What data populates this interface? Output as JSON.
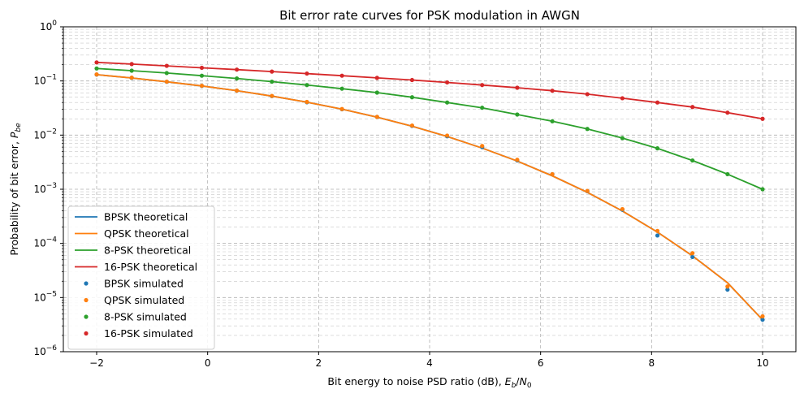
{
  "chart_data": {
    "type": "line",
    "title": "Bit error rate curves for PSK modulation in AWGN",
    "xlabel": {
      "main": "Bit energy to noise PSD ratio (dB), ",
      "var": "E",
      "sub": "b",
      "sep": "/",
      "var2": "N",
      "sub2": "0"
    },
    "ylabel": {
      "main": "Probability of bit error, ",
      "var": "P",
      "sub": "be"
    },
    "xlim": [
      -2.6,
      10.6
    ],
    "ylim": [
      1e-06,
      1
    ],
    "yscale": "log",
    "grid": true,
    "legend_position": "lower-left",
    "x_ticks": [
      -2,
      0,
      2,
      4,
      6,
      8,
      10
    ],
    "x_tick_labels": [
      "−2",
      "0",
      "2",
      "4",
      "6",
      "8",
      "10"
    ],
    "y_ticks": [
      {
        "exp": -6,
        "base": "10",
        "sup": "−6"
      },
      {
        "exp": -5,
        "base": "10",
        "sup": "−5"
      },
      {
        "exp": -4,
        "base": "10",
        "sup": "−4"
      },
      {
        "exp": -3,
        "base": "10",
        "sup": "−3"
      },
      {
        "exp": -2,
        "base": "10",
        "sup": "−2"
      },
      {
        "exp": -1,
        "base": "10",
        "sup": "−1"
      },
      {
        "exp": 0,
        "base": "10",
        "sup": "0"
      }
    ],
    "x": [
      -2.0,
      -1.368,
      -0.737,
      -0.105,
      0.526,
      1.158,
      1.789,
      2.421,
      3.053,
      3.684,
      4.316,
      4.947,
      5.579,
      6.211,
      6.842,
      7.474,
      8.105,
      8.737,
      9.368,
      10.0
    ],
    "series": [
      {
        "name": "BPSK theoretical",
        "kind": "line",
        "color": "#1f77b4",
        "values": [
          0.1306,
          0.1135,
          0.0966,
          0.0808,
          0.0662,
          0.0526,
          0.0405,
          0.0301,
          0.0215,
          0.0146,
          0.00944,
          0.00576,
          0.00331,
          0.00177,
          0.000876,
          0.000396,
          0.000162,
          5.89e-05,
          1.88e-05,
          3.87e-06
        ]
      },
      {
        "name": "QPSK theoretical",
        "kind": "line",
        "color": "#ff7f0e",
        "values": [
          0.1306,
          0.1135,
          0.0966,
          0.0808,
          0.0662,
          0.0526,
          0.0405,
          0.0301,
          0.0215,
          0.0146,
          0.00944,
          0.00576,
          0.00331,
          0.00177,
          0.000876,
          0.000396,
          0.000162,
          5.89e-05,
          1.88e-05,
          3.87e-06
        ]
      },
      {
        "name": "8-PSK theoretical",
        "kind": "line",
        "color": "#2ca02c",
        "values": [
          0.17,
          0.155,
          0.14,
          0.125,
          0.111,
          0.097,
          0.084,
          0.072,
          0.061,
          0.05,
          0.04,
          0.032,
          0.024,
          0.018,
          0.013,
          0.0088,
          0.0057,
          0.0034,
          0.0019,
          0.001
        ]
      },
      {
        "name": "16-PSK theoretical",
        "kind": "line",
        "color": "#d62728",
        "values": [
          0.22,
          0.205,
          0.19,
          0.175,
          0.162,
          0.149,
          0.137,
          0.125,
          0.114,
          0.104,
          0.094,
          0.084,
          0.075,
          0.066,
          0.057,
          0.048,
          0.04,
          0.033,
          0.026,
          0.02
        ]
      },
      {
        "name": "BPSK simulated",
        "kind": "scatter",
        "color": "#1f77b4",
        "values": [
          0.131,
          0.114,
          0.0965,
          0.081,
          0.0662,
          0.0525,
          0.0404,
          0.03,
          0.0216,
          0.0148,
          0.0095,
          0.006,
          0.0034,
          0.0019,
          0.00092,
          0.00042,
          0.00014,
          5.6e-05,
          1.4e-05,
          3.9e-06
        ]
      },
      {
        "name": "QPSK simulated",
        "kind": "scatter",
        "color": "#ff7f0e",
        "values": [
          0.132,
          0.115,
          0.097,
          0.0815,
          0.0665,
          0.053,
          0.041,
          0.0303,
          0.0217,
          0.015,
          0.0098,
          0.0063,
          0.0035,
          0.0019,
          0.00093,
          0.00043,
          0.00017,
          6.6e-05,
          1.6e-05,
          4.5e-06
        ]
      },
      {
        "name": "8-PSK simulated",
        "kind": "scatter",
        "color": "#2ca02c",
        "values": [
          0.17,
          0.155,
          0.14,
          0.125,
          0.111,
          0.097,
          0.084,
          0.072,
          0.061,
          0.05,
          0.04,
          0.032,
          0.024,
          0.018,
          0.013,
          0.0088,
          0.0057,
          0.0034,
          0.0019,
          0.001
        ]
      },
      {
        "name": "16-PSK simulated",
        "kind": "scatter",
        "color": "#d62728",
        "values": [
          0.22,
          0.205,
          0.19,
          0.175,
          0.162,
          0.149,
          0.137,
          0.125,
          0.114,
          0.104,
          0.094,
          0.084,
          0.075,
          0.066,
          0.057,
          0.048,
          0.04,
          0.033,
          0.026,
          0.02
        ]
      }
    ]
  }
}
